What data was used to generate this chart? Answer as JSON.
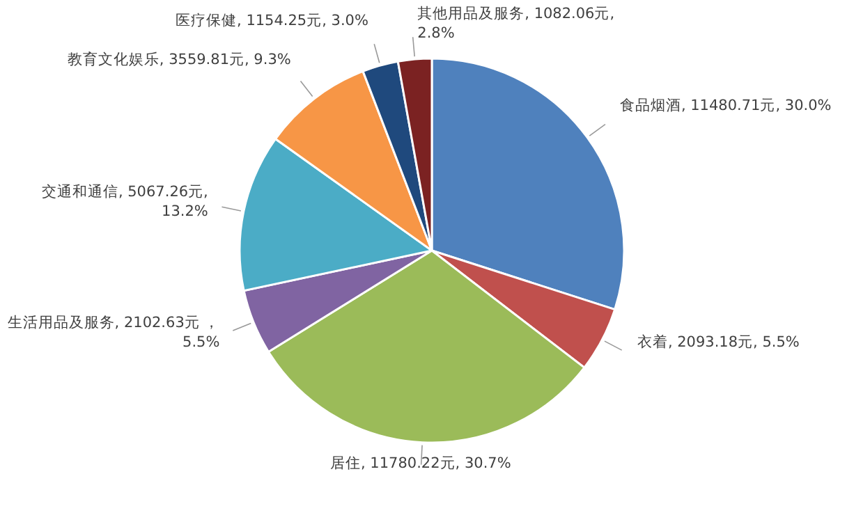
{
  "chart_data": {
    "type": "pie",
    "categories": [
      "食品烟酒",
      "衣着",
      "居住",
      "生活用品及服务",
      "交通和通信",
      "教育文化娱乐",
      "医疗保健",
      "其他用品及服务"
    ],
    "values": [
      11480.71,
      2093.18,
      11780.22,
      2102.63,
      5067.26,
      3559.81,
      1154.25,
      1082.06
    ],
    "value_labels": [
      "11480.71元, 30.0%",
      "2093.18元, 5.5%",
      "11780.22元, 30.7%",
      "2102.63元 ， 5.5%",
      "5067.26元, 13.2%",
      "3559.81元, 9.3%",
      "1154.25元, 3.0%",
      "1082.06元, 2.8%"
    ],
    "colors": [
      "#4f81bd",
      "#c0504d",
      "#9bbb59",
      "#8064a2",
      "#4bacc6",
      "#f79646",
      "#1f497d",
      "#7b2222"
    ]
  }
}
